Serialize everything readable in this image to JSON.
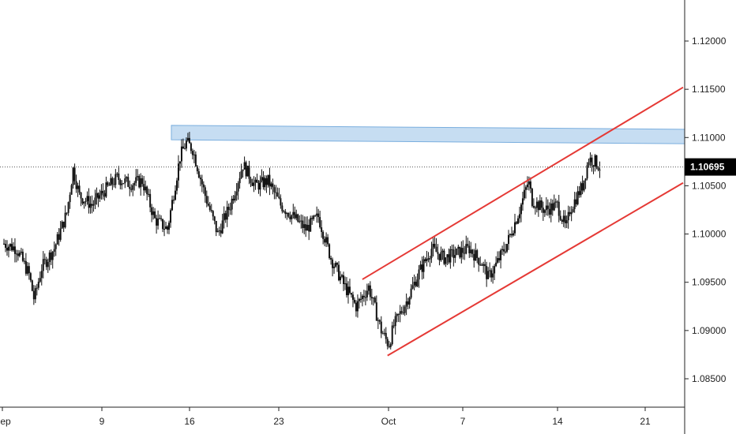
{
  "chart_data": {
    "type": "candlestick",
    "title": "",
    "xlabel": "",
    "ylabel": "",
    "ylim": [
      1.0815,
      1.1245
    ],
    "x_ticks": [
      "Sep",
      "9",
      "16",
      "23",
      "Oct",
      "7",
      "14",
      "21"
    ],
    "y_ticks": [
      "1.12000",
      "1.11500",
      "1.11000",
      "1.10500",
      "1.10000",
      "1.09500",
      "1.09000",
      "1.08500"
    ],
    "y_tick_values": [
      1.12,
      1.115,
      1.11,
      1.105,
      1.1,
      1.095,
      1.09,
      1.085
    ],
    "current_price_label": "1.10695",
    "current_price": 1.10695,
    "resistance_zone": {
      "low": 1.1096,
      "high": 1.1111
    },
    "channel_upper": {
      "from": [
        28.5,
        1.0953
      ],
      "to": [
        54,
        1.1152
      ]
    },
    "channel_lower": {
      "from": [
        30.5,
        1.0874
      ],
      "to": [
        54,
        1.1053
      ]
    },
    "x_span_days": [
      0,
      54
    ],
    "price_path": [
      [
        0,
        1.099
      ],
      [
        1,
        1.0985
      ],
      [
        2,
        1.0958
      ],
      [
        2.4,
        1.0932
      ],
      [
        3,
        1.0965
      ],
      [
        4,
        1.0985
      ],
      [
        5,
        1.1022
      ],
      [
        5.5,
        1.1067
      ],
      [
        6,
        1.104
      ],
      [
        7,
        1.103
      ],
      [
        8,
        1.1045
      ],
      [
        9,
        1.1058
      ],
      [
        10,
        1.1052
      ],
      [
        11,
        1.1055
      ],
      [
        12,
        1.1015
      ],
      [
        13,
        1.1005
      ],
      [
        14,
        1.108
      ],
      [
        14.5,
        1.1095
      ],
      [
        15,
        1.1088
      ],
      [
        16,
        1.104
      ],
      [
        17,
        1.1
      ],
      [
        18,
        1.103
      ],
      [
        19,
        1.1072
      ],
      [
        20,
        1.105
      ],
      [
        21,
        1.1055
      ],
      [
        22,
        1.103
      ],
      [
        23,
        1.1018
      ],
      [
        24,
        1.1005
      ],
      [
        25,
        1.1018
      ],
      [
        26,
        1.0975
      ],
      [
        27,
        1.0948
      ],
      [
        28,
        1.0925
      ],
      [
        29,
        1.0945
      ],
      [
        30,
        1.09
      ],
      [
        30.6,
        1.0885
      ],
      [
        31,
        1.0905
      ],
      [
        32,
        1.093
      ],
      [
        33,
        1.096
      ],
      [
        34,
        1.0985
      ],
      [
        35,
        1.0975
      ],
      [
        36,
        1.098
      ],
      [
        37,
        1.0985
      ],
      [
        38,
        1.097
      ],
      [
        38.5,
        1.0955
      ],
      [
        39,
        1.0965
      ],
      [
        40,
        1.099
      ],
      [
        41,
        1.1025
      ],
      [
        41.7,
        1.1055
      ],
      [
        42,
        1.1035
      ],
      [
        43,
        1.1025
      ],
      [
        44,
        1.103
      ],
      [
        44.7,
        1.1005
      ],
      [
        45,
        1.1025
      ],
      [
        46,
        1.105
      ],
      [
        46.5,
        1.1078
      ],
      [
        47,
        1.1075
      ],
      [
        47.4,
        1.10695
      ]
    ]
  },
  "colors": {
    "candle": "#111111",
    "zone_fill": "#bcd7f0",
    "zone_stroke": "#7aaede",
    "channel": "#e53935",
    "price_line": "#555555",
    "price_tag_bg": "#000000",
    "axis": "#222222"
  }
}
